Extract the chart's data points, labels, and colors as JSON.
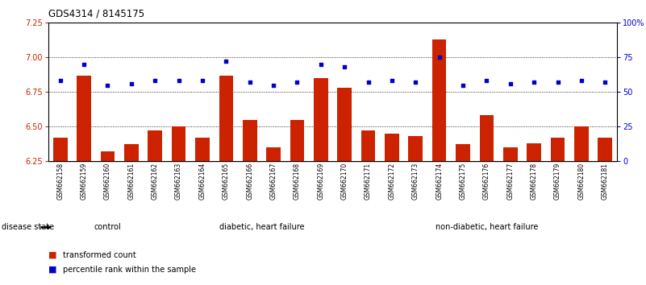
{
  "title": "GDS4314 / 8145175",
  "samples": [
    "GSM662158",
    "GSM662159",
    "GSM662160",
    "GSM662161",
    "GSM662162",
    "GSM662163",
    "GSM662164",
    "GSM662165",
    "GSM662166",
    "GSM662167",
    "GSM662168",
    "GSM662169",
    "GSM662170",
    "GSM662171",
    "GSM662172",
    "GSM662173",
    "GSM662174",
    "GSM662175",
    "GSM662176",
    "GSM662177",
    "GSM662178",
    "GSM662179",
    "GSM662180",
    "GSM662181"
  ],
  "transformed_counts": [
    6.42,
    6.87,
    6.32,
    6.37,
    6.47,
    6.5,
    6.42,
    6.87,
    6.55,
    6.35,
    6.55,
    6.85,
    6.78,
    6.47,
    6.45,
    6.43,
    7.13,
    6.37,
    6.58,
    6.35,
    6.38,
    6.42,
    6.5,
    6.42
  ],
  "percentile_ranks": [
    58,
    70,
    55,
    56,
    58,
    58,
    58,
    72,
    57,
    55,
    57,
    70,
    68,
    57,
    58,
    57,
    75,
    55,
    58,
    56,
    57,
    57,
    58,
    57
  ],
  "ylim_left": [
    6.25,
    7.25
  ],
  "ylim_right": [
    0,
    100
  ],
  "yticks_left": [
    6.25,
    6.5,
    6.75,
    7.0,
    7.25
  ],
  "yticks_right": [
    0,
    25,
    50,
    75,
    100
  ],
  "ytick_labels_right": [
    "0",
    "25",
    "50",
    "75",
    "100%"
  ],
  "bar_color": "#CC2200",
  "scatter_color": "#0000CC",
  "bg_color": "#FFFFFF",
  "tick_label_area_color": "#C8C8C8",
  "green_color": "#66DD66",
  "group_dividers": [
    4.5,
    12.5
  ],
  "group_labels": [
    "control",
    "diabetic, heart failure",
    "non-diabetic, heart failure"
  ],
  "group_starts": [
    0,
    5,
    13
  ],
  "group_ends": [
    4,
    12,
    23
  ],
  "legend_bar_label": "transformed count",
  "legend_scatter_label": "percentile rank within the sample",
  "disease_state_label": "disease state"
}
